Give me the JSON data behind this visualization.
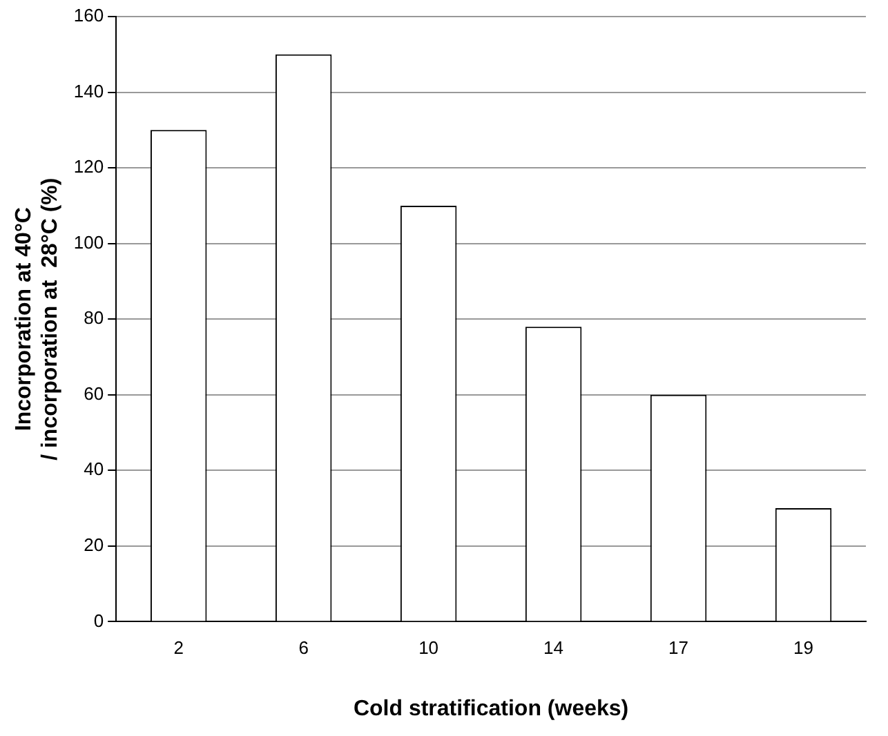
{
  "chart_data": {
    "type": "bar",
    "xlabel": "Cold stratification (weeks)",
    "ylabel": "Incorporation at 40°C\n/ incorporation at  28°C (%)",
    "categories": [
      "2",
      "6",
      "10",
      "14",
      "17",
      "19"
    ],
    "values": [
      130,
      150,
      110,
      78,
      60,
      30
    ],
    "color": "#ffffff",
    "ylim": [
      0,
      160
    ],
    "yticks": [
      0,
      20,
      40,
      60,
      80,
      100,
      120,
      140,
      160
    ],
    "grid": "y",
    "legend": false
  }
}
